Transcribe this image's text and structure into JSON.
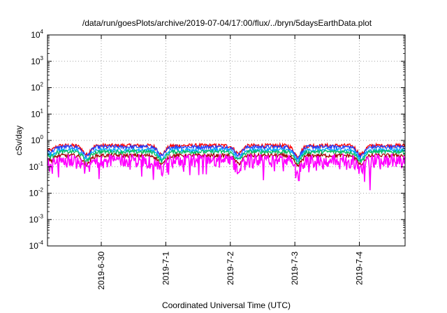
{
  "chart_data": {
    "type": "line",
    "title": "/data/run/goesPlots/archive/2019-07-04/17:00/flux/../bryn/5daysEarthData.plot",
    "xlabel": "Coordinated Universal Time (UTC)",
    "ylabel": "cSv/day",
    "yscale": "log",
    "ylim": [
      0.0001,
      10000
    ],
    "y_ticks": [
      {
        "base": "10",
        "exp": "-4",
        "value": 0.0001
      },
      {
        "base": "10",
        "exp": "-3",
        "value": 0.001
      },
      {
        "base": "10",
        "exp": "-2",
        "value": 0.01
      },
      {
        "base": "10",
        "exp": "-1",
        "value": 0.1
      },
      {
        "base": "10",
        "exp": "0",
        "value": 1
      },
      {
        "base": "10",
        "exp": "1",
        "value": 10
      },
      {
        "base": "10",
        "exp": "2",
        "value": 100
      },
      {
        "base": "10",
        "exp": "3",
        "value": 1000
      },
      {
        "base": "10",
        "exp": "4",
        "value": 10000
      }
    ],
    "xlim": [
      "2019-06-29T04:00",
      "2019-07-04T17:00"
    ],
    "x_ticks": [
      {
        "label": "2019-6-30",
        "value": "2019-06-30T00:00"
      },
      {
        "label": "2019-7-1",
        "value": "2019-07-01T00:00"
      },
      {
        "label": "2019-7-2",
        "value": "2019-07-02T00:00"
      },
      {
        "label": "2019-7-3",
        "value": "2019-07-03T00:00"
      },
      {
        "label": "2019-7-4",
        "value": "2019-07-04T00:00"
      }
    ],
    "grid": true,
    "series": [
      {
        "color": "#ff0000",
        "base": 0.62
      },
      {
        "color": "#1f3fff",
        "base": 0.55
      },
      {
        "color": "#00aaff",
        "base": 0.42
      },
      {
        "color": "#00c060",
        "base": 0.36
      },
      {
        "color": "#a00000",
        "base": 0.26
      },
      {
        "color": "#ff00ff",
        "base": 0.2
      }
    ],
    "minima": [
      {
        "x": "2019-06-29T05:00",
        "depth": 0.35
      },
      {
        "x": "2019-06-29T18:30",
        "depth": 0.55
      },
      {
        "x": "2019-06-30T22:30",
        "depth": 0.55
      },
      {
        "x": "2019-07-02T03:00",
        "depth": 0.5
      },
      {
        "x": "2019-07-03T01:00",
        "depth": 0.6
      },
      {
        "x": "2019-07-04T00:30",
        "depth": 0.55
      }
    ],
    "spikes": [
      {
        "x": "2019-06-29T08:00",
        "value": 0.04
      },
      {
        "x": "2019-07-01T01:00",
        "value": 0.05
      },
      {
        "x": "2019-07-03T01:30",
        "value": 0.03
      },
      {
        "x": "2019-07-04T04:00",
        "value": 0.013
      }
    ]
  }
}
